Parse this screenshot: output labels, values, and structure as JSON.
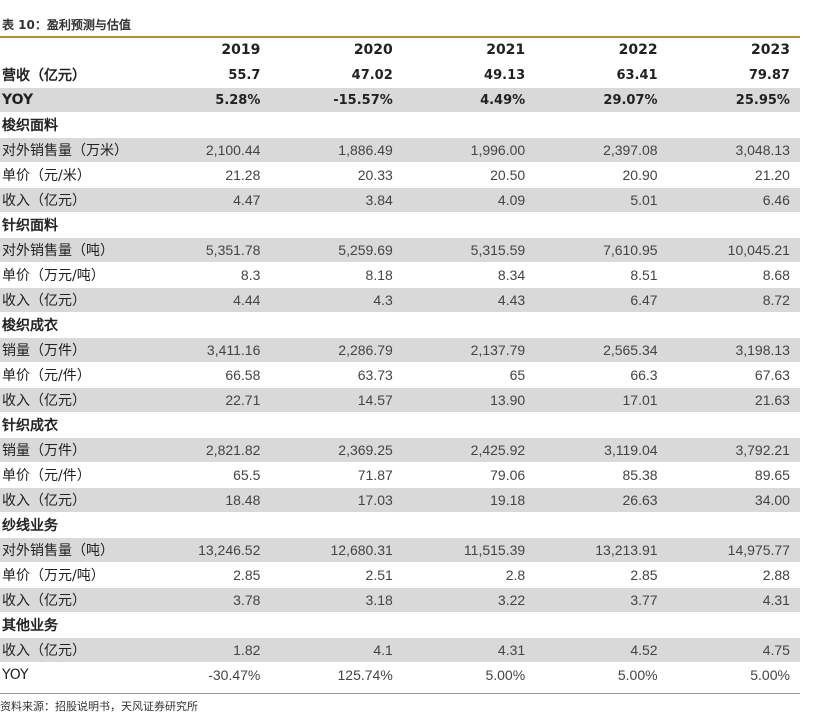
{
  "caption": "表 10：盈利预测与估值",
  "source": "资料来源：招股说明书，天风证券研究所",
  "colors": {
    "accent_rule": "#b58b3c",
    "row_shade": "#d9d9d9"
  },
  "table": {
    "header": {
      "label": "",
      "values": [
        "2019",
        "2020",
        "2021",
        "2022",
        "2023"
      ]
    },
    "rows": [
      {
        "label": "营收（亿元）",
        "values": [
          "55.7",
          "47.02",
          "49.13",
          "63.41",
          "79.87"
        ],
        "style": "bold"
      },
      {
        "label": "YOY",
        "values": [
          "5.28%",
          "-15.57%",
          "4.49%",
          "29.07%",
          "25.95%"
        ],
        "style": "bold",
        "shaded": true
      },
      {
        "label": "梭织面料",
        "values": [
          "",
          "",
          "",
          "",
          ""
        ],
        "style": "section"
      },
      {
        "label": "对外销售量（万米）",
        "values": [
          "2,100.44",
          "1,886.49",
          "1,996.00",
          "2,397.08",
          "3,048.13"
        ],
        "style": "plain",
        "shaded": true
      },
      {
        "label": "单价（元/米）",
        "values": [
          "21.28",
          "20.33",
          "20.50",
          "20.90",
          "21.20"
        ],
        "style": "plain"
      },
      {
        "label": "收入（亿元）",
        "values": [
          "4.47",
          "3.84",
          "4.09",
          "5.01",
          "6.46"
        ],
        "style": "plain",
        "shaded": true
      },
      {
        "label": "针织面料",
        "values": [
          "",
          "",
          "",
          "",
          ""
        ],
        "style": "section"
      },
      {
        "label": "对外销售量（吨）",
        "values": [
          "5,351.78",
          "5,259.69",
          "5,315.59",
          "7,610.95",
          "10,045.21"
        ],
        "style": "plain",
        "shaded": true
      },
      {
        "label": "单价（万元/吨）",
        "values": [
          "8.3",
          "8.18",
          "8.34",
          "8.51",
          "8.68"
        ],
        "style": "plain"
      },
      {
        "label": "收入（亿元）",
        "values": [
          "4.44",
          "4.3",
          "4.43",
          "6.47",
          "8.72"
        ],
        "style": "plain",
        "shaded": true
      },
      {
        "label": "梭织成衣",
        "values": [
          "",
          "",
          "",
          "",
          ""
        ],
        "style": "section"
      },
      {
        "label": "销量（万件）",
        "values": [
          "3,411.16",
          "2,286.79",
          "2,137.79",
          "2,565.34",
          "3,198.13"
        ],
        "style": "plain",
        "shaded": true
      },
      {
        "label": "单价（元/件）",
        "values": [
          "66.58",
          "63.73",
          "65",
          "66.3",
          "67.63"
        ],
        "style": "plain"
      },
      {
        "label": "收入（亿元）",
        "values": [
          "22.71",
          "14.57",
          "13.90",
          "17.01",
          "21.63"
        ],
        "style": "plain",
        "shaded": true
      },
      {
        "label": "针织成衣",
        "values": [
          "",
          "",
          "",
          "",
          ""
        ],
        "style": "section"
      },
      {
        "label": "销量（万件）",
        "values": [
          "2,821.82",
          "2,369.25",
          "2,425.92",
          "3,119.04",
          "3,792.21"
        ],
        "style": "plain",
        "shaded": true
      },
      {
        "label": "单价（元/件）",
        "values": [
          "65.5",
          "71.87",
          "79.06",
          "85.38",
          "89.65"
        ],
        "style": "plain"
      },
      {
        "label": "收入（亿元）",
        "values": [
          "18.48",
          "17.03",
          "19.18",
          "26.63",
          "34.00"
        ],
        "style": "plain",
        "shaded": true
      },
      {
        "label": "纱线业务",
        "values": [
          "",
          "",
          "",
          "",
          ""
        ],
        "style": "section"
      },
      {
        "label": "对外销售量（吨）",
        "values": [
          "13,246.52",
          "12,680.31",
          "11,515.39",
          "13,213.91",
          "14,975.77"
        ],
        "style": "plain",
        "shaded": true
      },
      {
        "label": "单价（万元/吨）",
        "values": [
          "2.85",
          "2.51",
          "2.8",
          "2.85",
          "2.88"
        ],
        "style": "plain"
      },
      {
        "label": "收入（亿元）",
        "values": [
          "3.78",
          "3.18",
          "3.22",
          "3.77",
          "4.31"
        ],
        "style": "plain",
        "shaded": true
      },
      {
        "label": "其他业务",
        "values": [
          "",
          "",
          "",
          "",
          ""
        ],
        "style": "section"
      },
      {
        "label": "收入（亿元）",
        "values": [
          "1.82",
          "4.1",
          "4.31",
          "4.52",
          "4.75"
        ],
        "style": "plain",
        "shaded": true
      },
      {
        "label": "YOY",
        "values": [
          "-30.47%",
          "125.74%",
          "5.00%",
          "5.00%",
          "5.00%"
        ],
        "style": "plain"
      }
    ]
  }
}
